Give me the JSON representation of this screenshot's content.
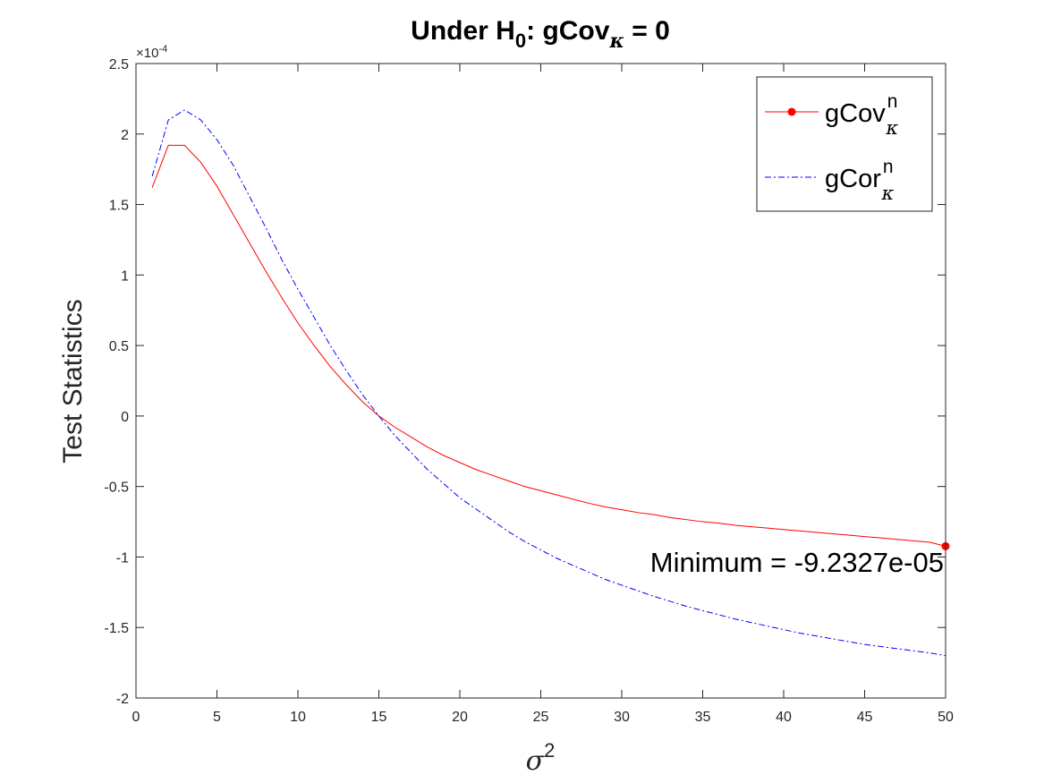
{
  "chart_data": {
    "type": "line",
    "title": {
      "prefix": "Under H",
      "sub": "0",
      "middle": ": gCov",
      "sub2": "κ",
      "suffix": " = 0"
    },
    "xlabel": {
      "symbol": "σ",
      "sup": "2"
    },
    "ylabel": "Test Statistics",
    "y_multiplier": {
      "base": "×10",
      "exp": "-4"
    },
    "xlim": [
      0,
      50
    ],
    "ylim": [
      -2,
      2.5
    ],
    "x_ticks": [
      0,
      5,
      10,
      15,
      20,
      25,
      30,
      35,
      40,
      45,
      50
    ],
    "y_ticks": [
      -2,
      -1.5,
      -1,
      -0.5,
      0,
      0.5,
      1,
      1.5,
      2,
      2.5
    ],
    "y_tick_labels": [
      "-2",
      "-1.5",
      "-1",
      "-0.5",
      "0",
      "0.5",
      "1",
      "1.5",
      "2",
      "2.5"
    ],
    "x": [
      1,
      2,
      3,
      4,
      5,
      6,
      7,
      8,
      9,
      10,
      11,
      12,
      13,
      14,
      15,
      16,
      17,
      18,
      19,
      20,
      21,
      22,
      23,
      24,
      25,
      26,
      27,
      28,
      29,
      30,
      31,
      32,
      33,
      34,
      35,
      36,
      37,
      38,
      39,
      40,
      41,
      42,
      43,
      44,
      45,
      46,
      47,
      48,
      49,
      50
    ],
    "legend_placement": "top-right",
    "grid": false,
    "series": [
      {
        "name": {
          "base": "gCov",
          "sup": "n",
          "sub": "κ"
        },
        "color": "#ff0000",
        "style": "solid",
        "y": [
          1.62,
          1.92,
          1.92,
          1.8,
          1.63,
          1.43,
          1.23,
          1.03,
          0.84,
          0.66,
          0.5,
          0.35,
          0.22,
          0.1,
          0.0,
          -0.08,
          -0.15,
          -0.22,
          -0.28,
          -0.33,
          -0.38,
          -0.42,
          -0.46,
          -0.5,
          -0.53,
          -0.56,
          -0.59,
          -0.62,
          -0.645,
          -0.665,
          -0.685,
          -0.7,
          -0.72,
          -0.735,
          -0.75,
          -0.76,
          -0.775,
          -0.785,
          -0.795,
          -0.805,
          -0.815,
          -0.825,
          -0.835,
          -0.845,
          -0.855,
          -0.865,
          -0.875,
          -0.885,
          -0.895,
          -0.92327
        ]
      },
      {
        "name": {
          "base": "gCor",
          "sup": "n",
          "sub": "κ"
        },
        "color": "#0000ff",
        "style": "dashdot",
        "y": [
          1.7,
          2.1,
          2.17,
          2.1,
          1.96,
          1.78,
          1.56,
          1.34,
          1.11,
          0.9,
          0.7,
          0.5,
          0.32,
          0.15,
          0.0,
          -0.14,
          -0.26,
          -0.38,
          -0.48,
          -0.58,
          -0.66,
          -0.74,
          -0.82,
          -0.89,
          -0.95,
          -1.01,
          -1.06,
          -1.11,
          -1.16,
          -1.2,
          -1.24,
          -1.28,
          -1.315,
          -1.35,
          -1.38,
          -1.41,
          -1.44,
          -1.465,
          -1.49,
          -1.515,
          -1.54,
          -1.56,
          -1.58,
          -1.6,
          -1.62,
          -1.635,
          -1.65,
          -1.665,
          -1.68,
          -1.7
        ]
      }
    ],
    "annotation": {
      "text": "Minimum = -9.2327e-05",
      "x": 50,
      "y": -0.92327
    }
  }
}
